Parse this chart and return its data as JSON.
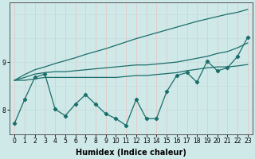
{
  "xlabel": "Humidex (Indice chaleur)",
  "bg_color": "#cfe8e8",
  "grid_color_v": "#e8c8c8",
  "grid_color_h": "#c8dede",
  "line_color": "#1a6e6a",
  "x": [
    0,
    1,
    2,
    3,
    4,
    5,
    6,
    7,
    8,
    9,
    10,
    11,
    12,
    13,
    14,
    15,
    16,
    17,
    18,
    19,
    20,
    21,
    22,
    23
  ],
  "data_line": [
    7.72,
    8.22,
    8.68,
    8.75,
    8.02,
    7.88,
    8.12,
    8.32,
    8.12,
    7.92,
    7.82,
    7.68,
    8.22,
    7.82,
    7.82,
    8.38,
    8.72,
    8.78,
    8.58,
    9.02,
    8.82,
    8.88,
    9.12,
    9.52
  ],
  "line2": [
    8.62,
    8.62,
    8.65,
    8.68,
    8.68,
    8.68,
    8.68,
    8.68,
    8.68,
    8.68,
    8.68,
    8.7,
    8.72,
    8.72,
    8.74,
    8.76,
    8.78,
    8.82,
    8.85,
    8.88,
    8.9,
    8.9,
    8.92,
    8.95
  ],
  "line3": [
    8.62,
    8.68,
    8.75,
    8.78,
    8.8,
    8.8,
    8.82,
    8.84,
    8.86,
    8.88,
    8.9,
    8.92,
    8.94,
    8.94,
    8.96,
    8.98,
    9.0,
    9.04,
    9.08,
    9.12,
    9.18,
    9.22,
    9.3,
    9.4
  ],
  "line4": [
    8.62,
    8.74,
    8.84,
    8.9,
    8.97,
    9.03,
    9.09,
    9.16,
    9.22,
    9.28,
    9.35,
    9.42,
    9.49,
    9.55,
    9.61,
    9.67,
    9.73,
    9.79,
    9.85,
    9.9,
    9.95,
    10.0,
    10.04,
    10.1
  ],
  "ylim": [
    7.5,
    10.25
  ],
  "yticks": [
    8,
    9
  ],
  "xticks": [
    0,
    1,
    2,
    3,
    4,
    5,
    6,
    7,
    8,
    9,
    10,
    11,
    12,
    13,
    14,
    15,
    16,
    17,
    18,
    19,
    20,
    21,
    22,
    23
  ],
  "tick_fontsize": 5.5,
  "xlabel_fontsize": 7
}
